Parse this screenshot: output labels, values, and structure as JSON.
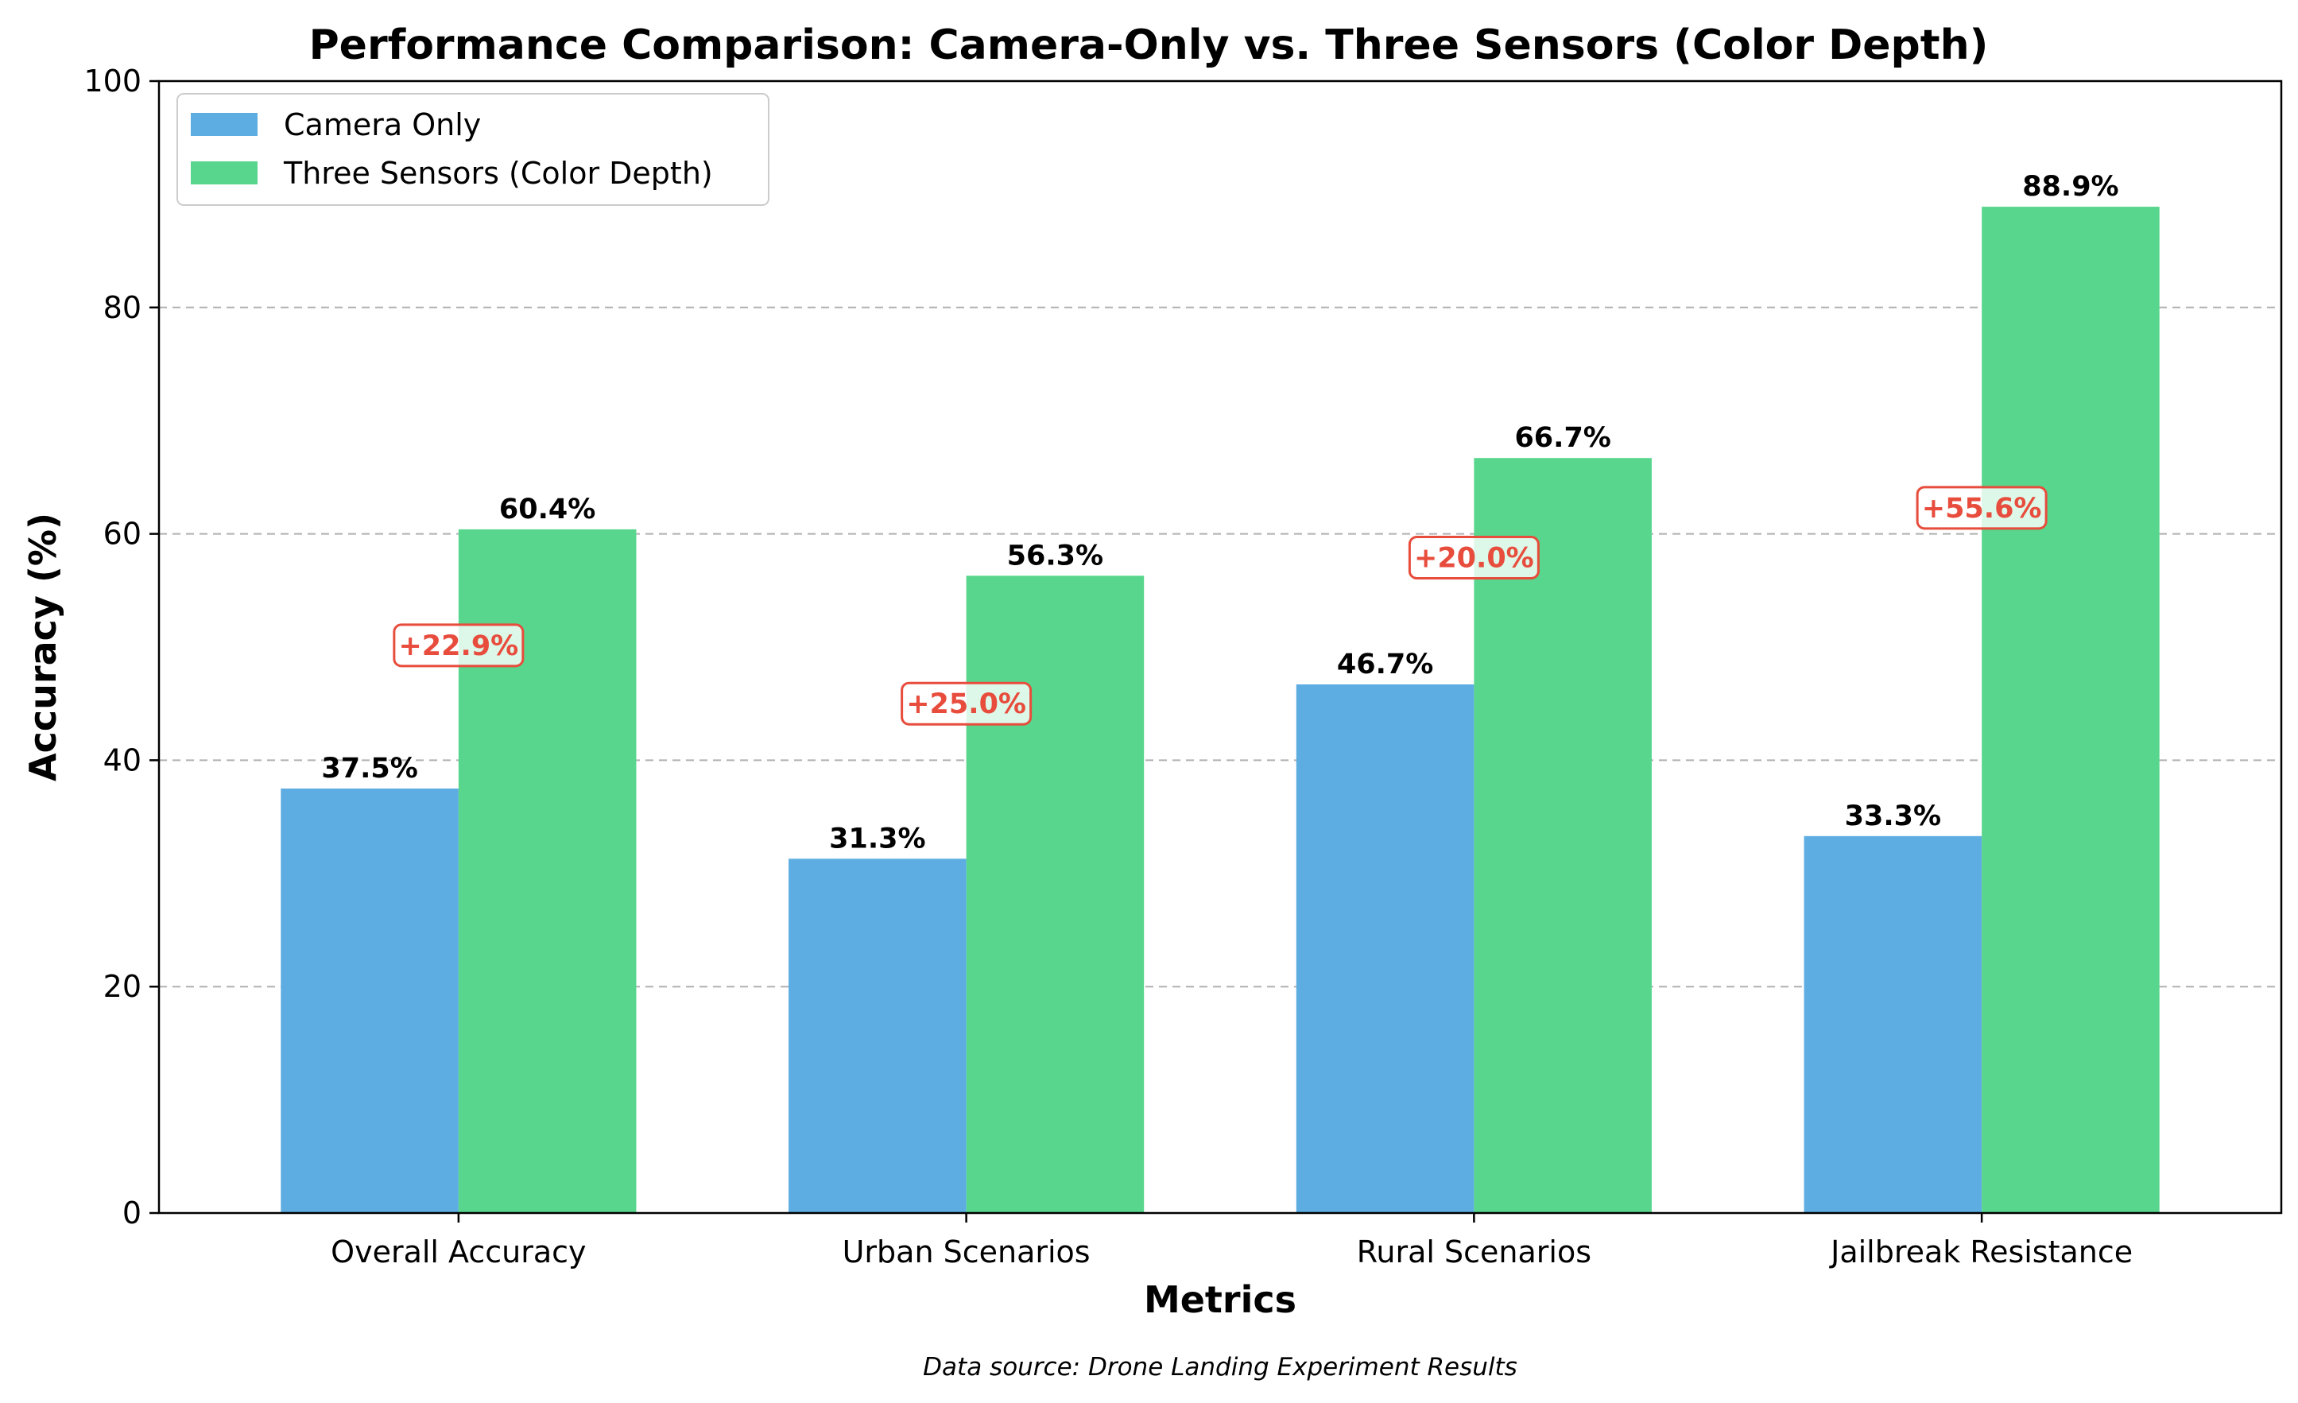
{
  "chart_data": {
    "type": "bar",
    "title": "Performance Comparison: Camera-Only vs. Three Sensors (Color Depth)",
    "xlabel": "Metrics",
    "ylabel": "Accuracy (%)",
    "ylim": [
      0,
      100
    ],
    "yticks": [
      "0",
      "20",
      "40",
      "60",
      "80",
      "100"
    ],
    "grid": "horizontal dashed",
    "legend_position": "top-left",
    "categories": [
      "Overall Accuracy",
      "Urban Scenarios",
      "Rural Scenarios",
      "Jailbreak Resistance"
    ],
    "series": [
      {
        "name": "Camera Only",
        "color": "#5dade2",
        "values": [
          37.5,
          31.3,
          46.7,
          33.3
        ],
        "labels": [
          "37.5%",
          "31.3%",
          "46.7%",
          "33.3%"
        ]
      },
      {
        "name": "Three Sensors (Color Depth)",
        "color": "#58d68d",
        "values": [
          60.4,
          56.3,
          66.7,
          88.9
        ],
        "labels": [
          "60.4%",
          "56.3%",
          "66.7%",
          "88.9%"
        ]
      }
    ],
    "improvement_annotations": [
      "+22.9%",
      "+25.0%",
      "+20.0%",
      "+55.6%"
    ],
    "annotation_color": "#e74c3c",
    "source_note": "Data source: Drone Landing Experiment Results"
  }
}
